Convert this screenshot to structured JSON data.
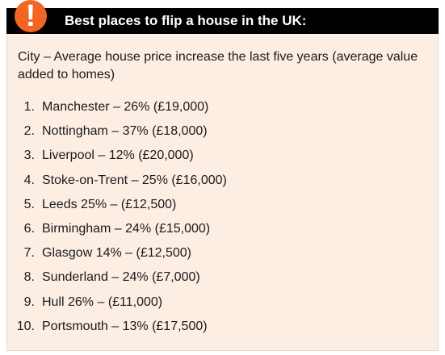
{
  "header": {
    "badge_symbol": "!",
    "title": "Best places to flip a house in the UK:"
  },
  "intro": "City – Average house price increase the last five years (average value added to homes)",
  "items": [
    {
      "num": "1.",
      "text": "Manchester – 26% (£19,000)"
    },
    {
      "num": "2.",
      "text": "Nottingham – 37% (£18,000)"
    },
    {
      "num": "3.",
      "text": "Liverpool – 12% (£20,000)"
    },
    {
      "num": "4.",
      "text": "Stoke-on-Trent – 25% (£16,000)"
    },
    {
      "num": "5.",
      "text": "Leeds 25% – (£12,500)"
    },
    {
      "num": "6.",
      "text": "Birmingham – 24% (£15,000)"
    },
    {
      "num": "7.",
      "text": "Glasgow 14% – (£12,500)"
    },
    {
      "num": "8.",
      "text": "Sunderland – 24% (£7,000)"
    },
    {
      "num": "9.",
      "text": "Hull 26% – (£11,000)"
    },
    {
      "num": "10.",
      "text": "Portsmouth – 13% (£17,500)"
    }
  ],
  "colors": {
    "header_bg": "#000000",
    "badge": "#f26522",
    "card_bg": "#fdeee4"
  }
}
